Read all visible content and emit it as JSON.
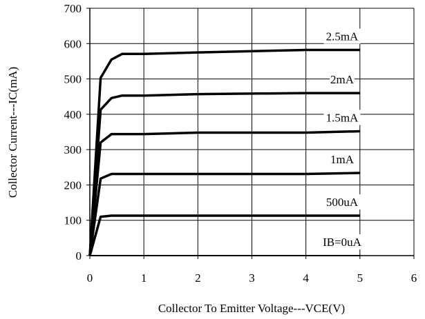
{
  "chart_data": {
    "type": "line",
    "title": "",
    "xlabel": "Collector To Emitter Voltage---VCE(V)",
    "ylabel": "Collector Current---IC(mA)",
    "xlim": [
      0,
      6
    ],
    "ylim": [
      0,
      700
    ],
    "x_ticks": [
      "0",
      "1",
      "2",
      "3",
      "4",
      "5",
      "6"
    ],
    "y_ticks": [
      "0",
      "100",
      "200",
      "300",
      "400",
      "500",
      "600",
      "700"
    ],
    "grid": true,
    "series": [
      {
        "name": "IB=0uA",
        "x": [
          0,
          5
        ],
        "y": [
          0,
          0
        ]
      },
      {
        "name": "500uA",
        "x": [
          0,
          0.2,
          0.4,
          0.6,
          1,
          5
        ],
        "y": [
          0,
          110,
          113,
          113,
          113,
          113
        ]
      },
      {
        "name": "1mA",
        "x": [
          0,
          0.2,
          0.4,
          0.6,
          1,
          2,
          4,
          5
        ],
        "y": [
          0,
          218,
          231,
          231,
          231,
          231,
          231,
          234
        ]
      },
      {
        "name": "1.5mA",
        "x": [
          0,
          0.2,
          0.4,
          0.6,
          1,
          2,
          4,
          5
        ],
        "y": [
          0,
          320,
          344,
          344,
          344,
          348,
          348,
          352
        ]
      },
      {
        "name": "2mA",
        "x": [
          0,
          0.2,
          0.4,
          0.6,
          1,
          2,
          4,
          5
        ],
        "y": [
          0,
          413,
          446,
          453,
          453,
          457,
          460,
          460
        ]
      },
      {
        "name": "2.5mA",
        "x": [
          0,
          0.2,
          0.4,
          0.6,
          1,
          2,
          4,
          5
        ],
        "y": [
          0,
          503,
          555,
          571,
          571,
          575,
          582,
          582
        ]
      }
    ]
  }
}
